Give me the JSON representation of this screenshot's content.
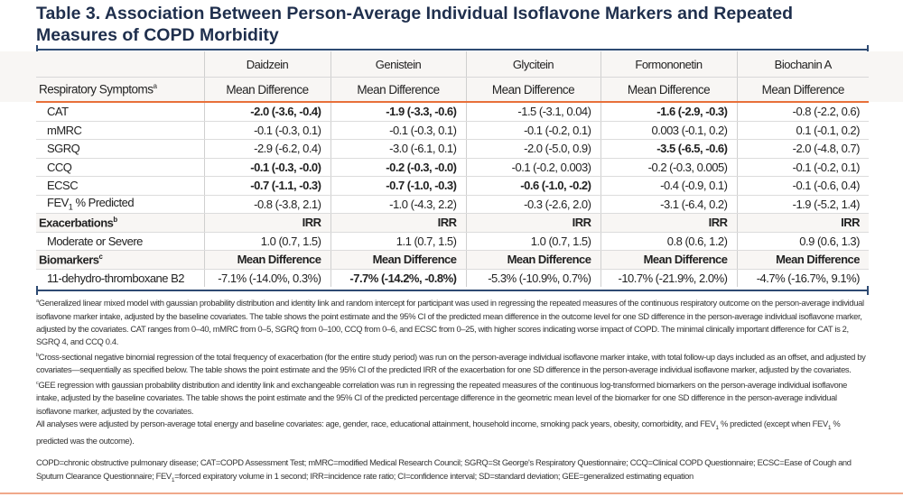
{
  "title": "Table 3. Association Between Person-Average Individual Isoflavone Markers and Repeated Measures of COPD Morbidity",
  "columns": [
    "Daidzein",
    "Genistein",
    "Glycitein",
    "Formononetin",
    "Biochanin A"
  ],
  "header": {
    "row_label": "Respiratory Symptoms",
    "row_label_sup": "a",
    "measure": "Mean Difference"
  },
  "rows": [
    {
      "type": "data",
      "label": "CAT",
      "cells": [
        {
          "v": "-2.0 (-3.6, -0.4)",
          "bold": true
        },
        {
          "v": "-1.9 (-3.3, -0.6)",
          "bold": true
        },
        {
          "v": "-1.5 (-3.1, 0.04)",
          "bold": false
        },
        {
          "v": "-1.6 (-2.9, -0.3)",
          "bold": true
        },
        {
          "v": "-0.8 (-2.2, 0.6)",
          "bold": false
        }
      ]
    },
    {
      "type": "data",
      "label": "mMRC",
      "cells": [
        {
          "v": "-0.1 (-0.3, 0.1)",
          "bold": false
        },
        {
          "v": "-0.1 (-0.3, 0.1)",
          "bold": false
        },
        {
          "v": "-0.1 (-0.2, 0.1)",
          "bold": false
        },
        {
          "v": "0.003 (-0.1, 0.2)",
          "bold": false
        },
        {
          "v": "0.1 (-0.1, 0.2)",
          "bold": false
        }
      ]
    },
    {
      "type": "data",
      "label": "SGRQ",
      "cells": [
        {
          "v": "-2.9 (-6.2, 0.4)",
          "bold": false
        },
        {
          "v": "-3.0 (-6.1, 0.1)",
          "bold": false
        },
        {
          "v": "-2.0 (-5.0, 0.9)",
          "bold": false
        },
        {
          "v": "-3.5 (-6.5, -0.6)",
          "bold": true
        },
        {
          "v": "-2.0 (-4.8, 0.7)",
          "bold": false
        }
      ]
    },
    {
      "type": "data",
      "label": "CCQ",
      "cells": [
        {
          "v": "-0.1 (-0.3, -0.0)",
          "bold": true
        },
        {
          "v": "-0.2 (-0.3, -0.0)",
          "bold": true
        },
        {
          "v": "-0.1 (-0.2, 0.003)",
          "bold": false
        },
        {
          "v": "-0.2 (-0.3, 0.005)",
          "bold": false
        },
        {
          "v": "-0.1 (-0.2, 0.1)",
          "bold": false
        }
      ]
    },
    {
      "type": "data",
      "label": "ECSC",
      "cells": [
        {
          "v": "-0.7 (-1.1, -0.3)",
          "bold": true
        },
        {
          "v": "-0.7 (-1.0, -0.3)",
          "bold": true
        },
        {
          "v": "-0.6 (-1.0, -0.2)",
          "bold": true
        },
        {
          "v": "-0.4 (-0.9, 0.1)",
          "bold": false
        },
        {
          "v": "-0.1 (-0.6, 0.4)",
          "bold": false
        }
      ]
    },
    {
      "type": "data",
      "label": "FEV",
      "label_sub": "1",
      "label_rest": " % Predicted",
      "cells": [
        {
          "v": "-0.8 (-3.8, 2.1)",
          "bold": false
        },
        {
          "v": "-1.0 (-4.3, 2.2)",
          "bold": false
        },
        {
          "v": "-0.3 (-2.6, 2.0)",
          "bold": false
        },
        {
          "v": "-3.1 (-6.4, 0.2)",
          "bold": false
        },
        {
          "v": "-1.9 (-5.2, 1.4)",
          "bold": false
        }
      ]
    },
    {
      "type": "section",
      "label": "Exacerbations",
      "label_sup": "b",
      "cells": [
        {
          "v": "IRR"
        },
        {
          "v": "IRR"
        },
        {
          "v": "IRR"
        },
        {
          "v": "IRR"
        },
        {
          "v": "IRR"
        }
      ]
    },
    {
      "type": "data",
      "label": "Moderate or Severe",
      "cells": [
        {
          "v": "1.0 (0.7, 1.5)",
          "bold": false
        },
        {
          "v": "1.1 (0.7, 1.5)",
          "bold": false
        },
        {
          "v": "1.0 (0.7, 1.5)",
          "bold": false
        },
        {
          "v": "0.8 (0.6, 1.2)",
          "bold": false
        },
        {
          "v": "0.9 (0.6, 1.3)",
          "bold": false
        }
      ]
    },
    {
      "type": "section",
      "label": "Biomarkers",
      "label_sup": "c",
      "cells": [
        {
          "v": "Mean Difference"
        },
        {
          "v": "Mean Difference"
        },
        {
          "v": "Mean Difference"
        },
        {
          "v": "Mean Difference"
        },
        {
          "v": "Mean Difference"
        }
      ]
    },
    {
      "type": "data",
      "label": "11-dehydro-thromboxane B2",
      "cells": [
        {
          "v": "-7.1% (-14.0%, 0.3%)",
          "bold": false
        },
        {
          "v": "-7.7% (-14.2%, -0.8%)",
          "bold": true
        },
        {
          "v": "-5.3% (-10.9%, 0.7%)",
          "bold": false
        },
        {
          "v": "-10.7% (-21.9%, 2.0%)",
          "bold": false
        },
        {
          "v": "-4.7% (-16.7%, 9.1%)",
          "bold": false
        }
      ]
    }
  ],
  "footnotes": [
    {
      "mark": "a",
      "text": "Generalized linear mixed model with gaussian probability distribution and identity link and random intercept for participant was used in regressing the repeated measures of the continuous respiratory outcome on the person-average individual isoflavone marker intake, adjusted by the baseline covariates. The table shows the point estimate and the 95% CI of the predicted mean difference in the outcome level for one SD difference in the person-average individual isoflavone marker, adjusted by the covariates. CAT ranges from 0–40, mMRC from 0–5, SGRQ from 0–100, CCQ from 0–6, and ECSC from 0–25, with higher scores indicating worse impact of COPD. The minimal clinically important difference for CAT is 2, SGRQ 4, and CCQ 0.4."
    },
    {
      "mark": "b",
      "text": "Cross-sectional negative binomial regression of the total frequency of exacerbation (for the entire study period) was run on the person-average individual isoflavone marker intake, with total follow-up days included as an offset, and adjusted by covariates—sequentially as specified below. The table shows the point estimate and the 95% CI of the predicted IRR of the exacerbation for one SD difference in the person-average individual isoflavone marker, adjusted by the covariates."
    },
    {
      "mark": "c",
      "text": "GEE regression with gaussian probability distribution and identity link and exchangeable correlation was run in regressing the repeated measures of the continuous log-transformed biomarkers on the person-average individual isoflavone intake, adjusted by the baseline covariates. The table shows the point estimate and the 95% CI of the predicted percentage difference in the geometric mean level of the biomarker for one SD difference in the person-average individual isoflavone marker, adjusted by the covariates."
    }
  ],
  "adjustment_note": {
    "part1": "All analyses were adjusted by person-average total energy and baseline covariates: age, gender, race, educational attainment, household income, smoking pack years, obesity, comorbidity, and FEV",
    "sub1": "1",
    "part2": " % predicted (except when FEV",
    "sub2": "1",
    "part3": " % predicted was the outcome)."
  },
  "abbreviations": {
    "part1": "COPD=chronic obstructive pulmonary disease; CAT=COPD Assessment Test; mMRC=modified Medical Research Council; SGRQ=St George's Respiratory Questionnaire; CCQ=Clinical COPD Questionnaire; ECSC=Ease of Cough and Sputum Clearance Questionnaire; FEV",
    "sub": "1",
    "part2": "=forced expiratory volume in 1 second; IRR=incidence rate ratio; CI=confidence interval; SD=standard deviation; GEE=generalized estimating equation"
  },
  "colors": {
    "title": "#1f2f4d",
    "rule": "#2e4a72",
    "accent": "#e8703a",
    "header_bg": "#f8f6f4"
  }
}
